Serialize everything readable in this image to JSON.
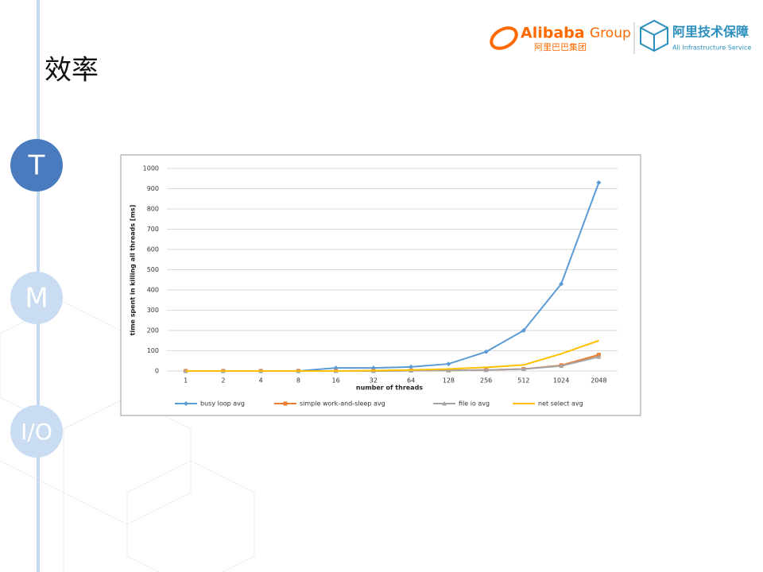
{
  "slide": {
    "title": "效率",
    "nav": [
      "T",
      "M",
      "I/O"
    ],
    "logo": {
      "brand": "Alibaba",
      "group": "Group",
      "brand_cn": "阿里巴巴集团",
      "unit_cn": "阿里技术保障",
      "unit_en": "Ali Infrastructure Service"
    }
  },
  "chart_data": {
    "type": "line",
    "y_label": "time spent in killing all threads [ms]",
    "x_label": "number of threads",
    "categories": [
      "1",
      "2",
      "4",
      "8",
      "16",
      "32",
      "64",
      "128",
      "256",
      "512",
      "1024",
      "2048"
    ],
    "ylim": [
      0,
      1000
    ],
    "yticks": [
      0,
      100,
      200,
      300,
      400,
      500,
      600,
      700,
      800,
      900,
      1000
    ],
    "grid": true,
    "legend": "bottom",
    "series": [
      {
        "name": "busy loop avg",
        "color": "#5b9bd5",
        "marker": "diamond",
        "values": [
          0,
          0,
          0,
          0,
          15,
          15,
          20,
          35,
          95,
          200,
          430,
          930
        ]
      },
      {
        "name": "simple work-and-sleep avg",
        "color": "#ed7d31",
        "marker": "square",
        "values": [
          0,
          0,
          0,
          0,
          0,
          0,
          2,
          3,
          5,
          10,
          28,
          80
        ]
      },
      {
        "name": "file io avg",
        "color": "#a5a5a5",
        "marker": "triangle",
        "values": [
          0,
          0,
          0,
          0,
          0,
          0,
          2,
          3,
          5,
          10,
          25,
          70
        ]
      },
      {
        "name": "net select avg",
        "color": "#ffc000",
        "marker": "none",
        "values": [
          0,
          0,
          0,
          0,
          0,
          2,
          5,
          10,
          18,
          30,
          85,
          150
        ]
      }
    ]
  }
}
